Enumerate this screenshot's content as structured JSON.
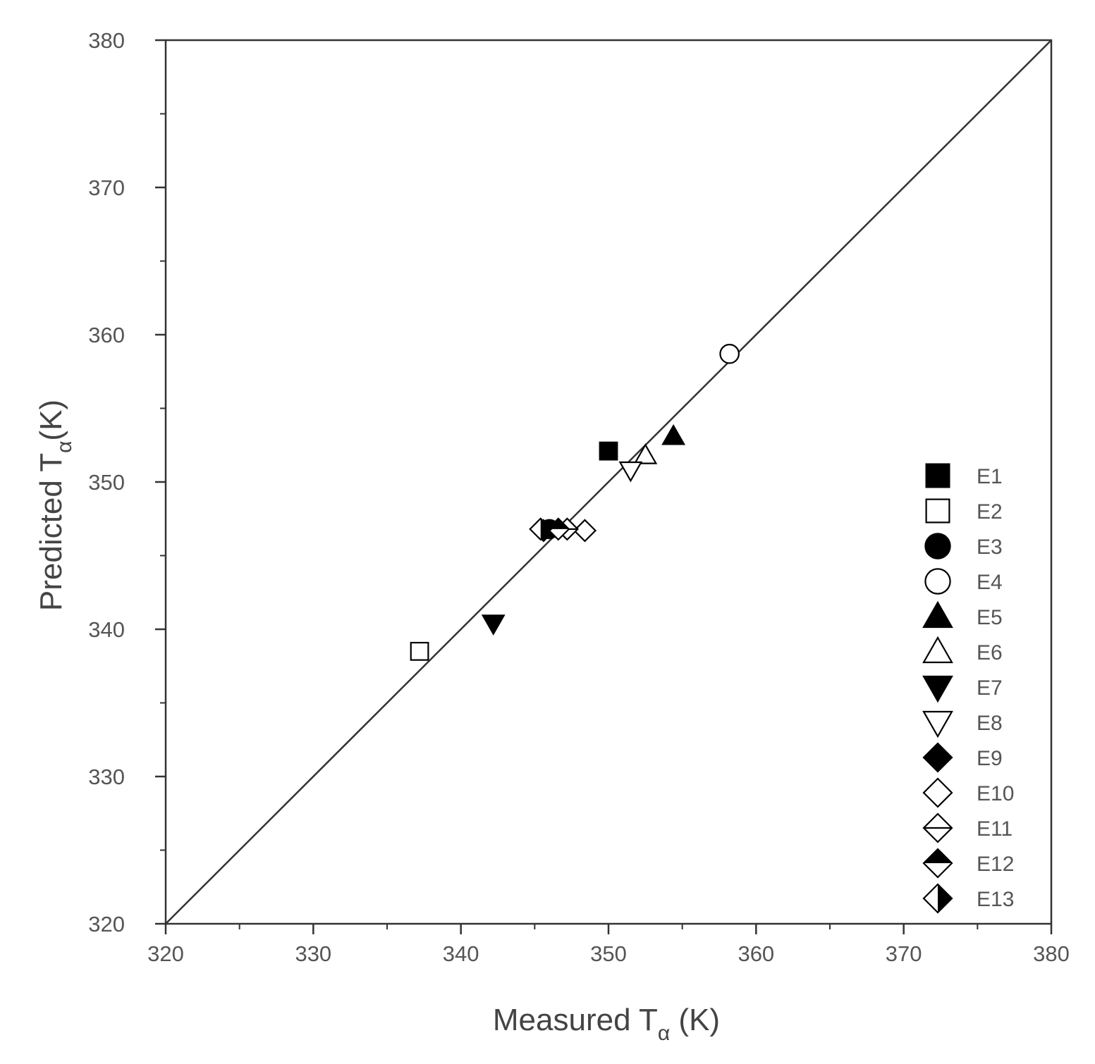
{
  "chart_data": {
    "type": "scatter",
    "title": "",
    "xlabel": {
      "prefix": "Measured T",
      "subscript": "α",
      "suffix": " (K)"
    },
    "ylabel": {
      "prefix": "Predicted T",
      "subscript": "α",
      "suffix": "(K)"
    },
    "xlim": [
      320,
      380
    ],
    "ylim": [
      320,
      380
    ],
    "xticks": [
      "320",
      "330",
      "340",
      "350",
      "360",
      "370",
      "380"
    ],
    "yticks": [
      "320",
      "330",
      "340",
      "350",
      "360",
      "370",
      "380"
    ],
    "reference_line": {
      "type": "y=x",
      "from": [
        320,
        320
      ],
      "to": [
        380,
        380
      ]
    },
    "grid": false,
    "legend_position": "bottom-right",
    "series": [
      {
        "name": "E1",
        "marker": "square-filled",
        "points": [
          [
            350.0,
            352.1
          ]
        ]
      },
      {
        "name": "E2",
        "marker": "square-open",
        "points": [
          [
            337.2,
            338.5
          ]
        ]
      },
      {
        "name": "E3",
        "marker": "circle-filled",
        "points": [
          [
            346.0,
            346.8
          ]
        ]
      },
      {
        "name": "E4",
        "marker": "circle-open",
        "points": [
          [
            358.2,
            358.7
          ]
        ]
      },
      {
        "name": "E5",
        "marker": "triangle-up-filled",
        "points": [
          [
            354.4,
            353.1
          ]
        ]
      },
      {
        "name": "E6",
        "marker": "triangle-up-open",
        "points": [
          [
            352.5,
            351.8
          ]
        ]
      },
      {
        "name": "E7",
        "marker": "triangle-down-filled",
        "points": [
          [
            342.2,
            340.4
          ]
        ]
      },
      {
        "name": "E8",
        "marker": "triangle-down-open",
        "points": [
          [
            351.5,
            350.8
          ]
        ]
      },
      {
        "name": "E9",
        "marker": "diamond-filled",
        "points": [
          [
            345.6,
            346.7
          ]
        ]
      },
      {
        "name": "E10",
        "marker": "diamond-open",
        "points": [
          [
            348.4,
            346.7
          ]
        ]
      },
      {
        "name": "E11",
        "marker": "diamond-h-line",
        "points": [
          [
            347.2,
            346.8
          ]
        ]
      },
      {
        "name": "E12",
        "marker": "diamond-top-filled",
        "points": [
          [
            346.6,
            346.8
          ]
        ]
      },
      {
        "name": "E13",
        "marker": "diamond-right-filled",
        "points": [
          [
            345.4,
            346.8
          ]
        ]
      }
    ]
  }
}
